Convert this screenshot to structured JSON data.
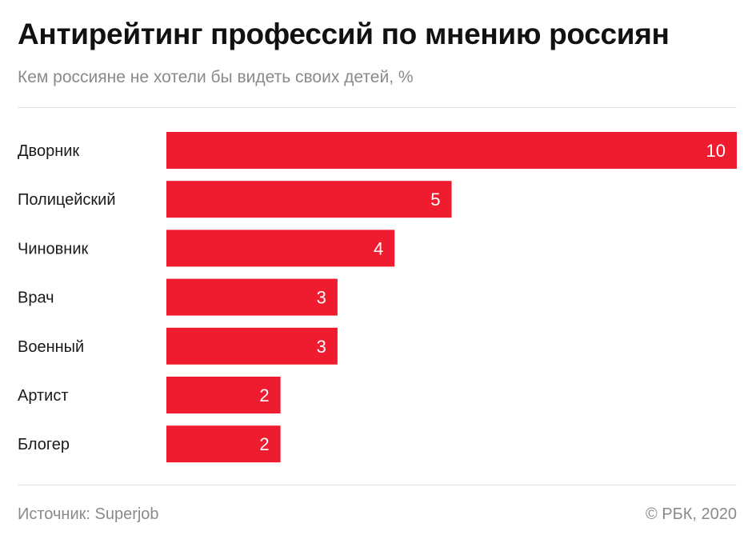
{
  "title": "Антирейтинг профессий по мнению россиян",
  "subtitle": "Кем россияне не хотели бы видеть своих детей, %",
  "footer": {
    "source": "Источник: Superjob",
    "copyright": "© РБК, 2020"
  },
  "colors": {
    "bar": "#ee1c2e",
    "bar_label": "#ffffff",
    "category_label": "#1a1a1a"
  },
  "chart_data": {
    "type": "bar",
    "orientation": "horizontal",
    "title": "Антирейтинг профессий по мнению россиян",
    "subtitle": "Кем россияне не хотели бы видеть своих детей, %",
    "categories": [
      "Дворник",
      "Полицейский",
      "Чиновник",
      "Врач",
      "Военный",
      "Артист",
      "Блогер"
    ],
    "values": [
      10,
      5,
      4,
      3,
      3,
      2,
      2
    ],
    "xlim": [
      0,
      10
    ],
    "xlabel": "",
    "ylabel": "",
    "grid": false,
    "data_labels": "inside-end"
  }
}
